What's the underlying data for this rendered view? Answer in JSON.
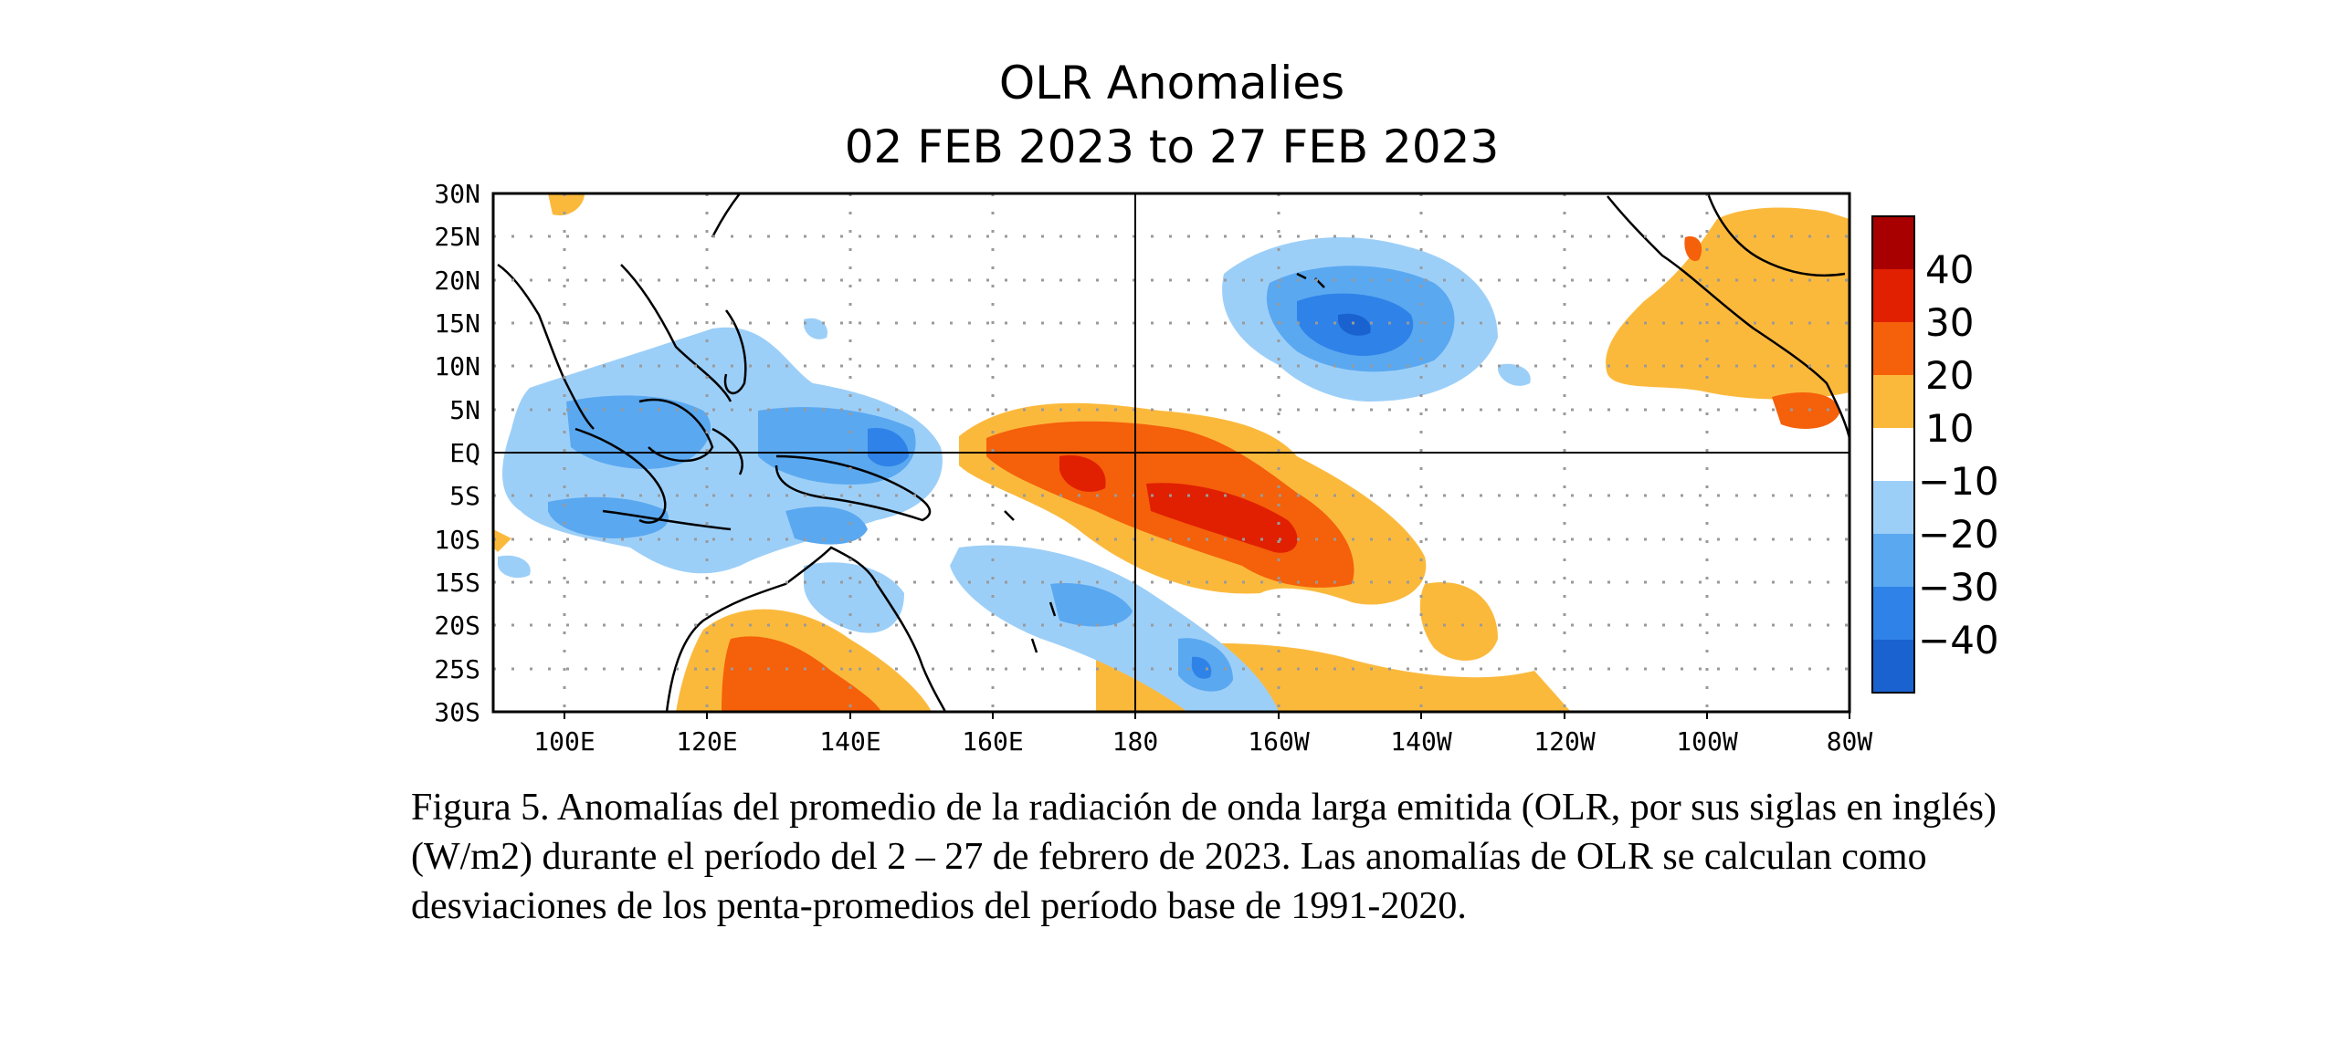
{
  "chart_data": {
    "type": "heatmap",
    "title": "OLR Anomalies",
    "subtitle": "02 FEB 2023 to 27 FEB 2023",
    "x_ticks": [
      "100E",
      "120E",
      "140E",
      "160E",
      "180",
      "160W",
      "140W",
      "120W",
      "100W",
      "80W"
    ],
    "x_tick_lon": [
      100,
      120,
      140,
      160,
      180,
      200,
      220,
      240,
      260,
      280
    ],
    "y_ticks": [
      "30N",
      "25N",
      "20N",
      "15N",
      "10N",
      "5N",
      "EQ",
      "5S",
      "10S",
      "15S",
      "20S",
      "25S",
      "30S"
    ],
    "y_tick_lat": [
      30,
      25,
      20,
      15,
      10,
      5,
      0,
      -5,
      -10,
      -15,
      -20,
      -25,
      -30
    ],
    "xlim": [
      90,
      280
    ],
    "ylim": [
      -30,
      30
    ],
    "grid": true,
    "colorbar": {
      "labels": [
        "40",
        "30",
        "20",
        "10",
        "−10",
        "−20",
        "−30",
        "−40"
      ],
      "colors": [
        "#a80000",
        "#e02000",
        "#f5600a",
        "#fbb93c",
        "#ffffff",
        "#9ccff8",
        "#5aa8f0",
        "#2f82e8",
        "#1a62d0"
      ]
    },
    "anomaly_regions": [
      {
        "lon": 182,
        "lat": -6,
        "rx": 18,
        "ry": 6,
        "level": 20
      },
      {
        "lon": 195,
        "lat": -10,
        "rx": 14,
        "ry": 5,
        "level": 30
      },
      {
        "lon": 168,
        "lat": -2,
        "rx": 8,
        "ry": 3,
        "level": 30
      },
      {
        "lon": 130,
        "lat": -27,
        "rx": 10,
        "ry": 4,
        "level": 20
      },
      {
        "lon": 268,
        "lat": 5,
        "rx": 4,
        "ry": 2,
        "level": 20
      },
      {
        "lon": 210,
        "lat": 14,
        "rx": 14,
        "ry": 8,
        "level": -30
      },
      {
        "lon": 212,
        "lat": 13,
        "rx": 7,
        "ry": 4,
        "level": -40
      },
      {
        "lon": 138,
        "lat": 1,
        "rx": 13,
        "ry": 6,
        "level": -20
      },
      {
        "lon": 112,
        "lat": -7,
        "rx": 9,
        "ry": 4,
        "level": -20
      },
      {
        "lon": 193,
        "lat": -25,
        "rx": 5,
        "ry": 3,
        "level": -20
      }
    ],
    "caption": "Figura 5. Anomalías del promedio de la radiación de onda larga emitida (OLR, por sus siglas en inglés) (W/m2) durante el período del 2 – 27 de febrero de 2023.  Las anomalías de OLR se calculan como desviaciones de los penta-promedios del período base de 1991-2020."
  }
}
